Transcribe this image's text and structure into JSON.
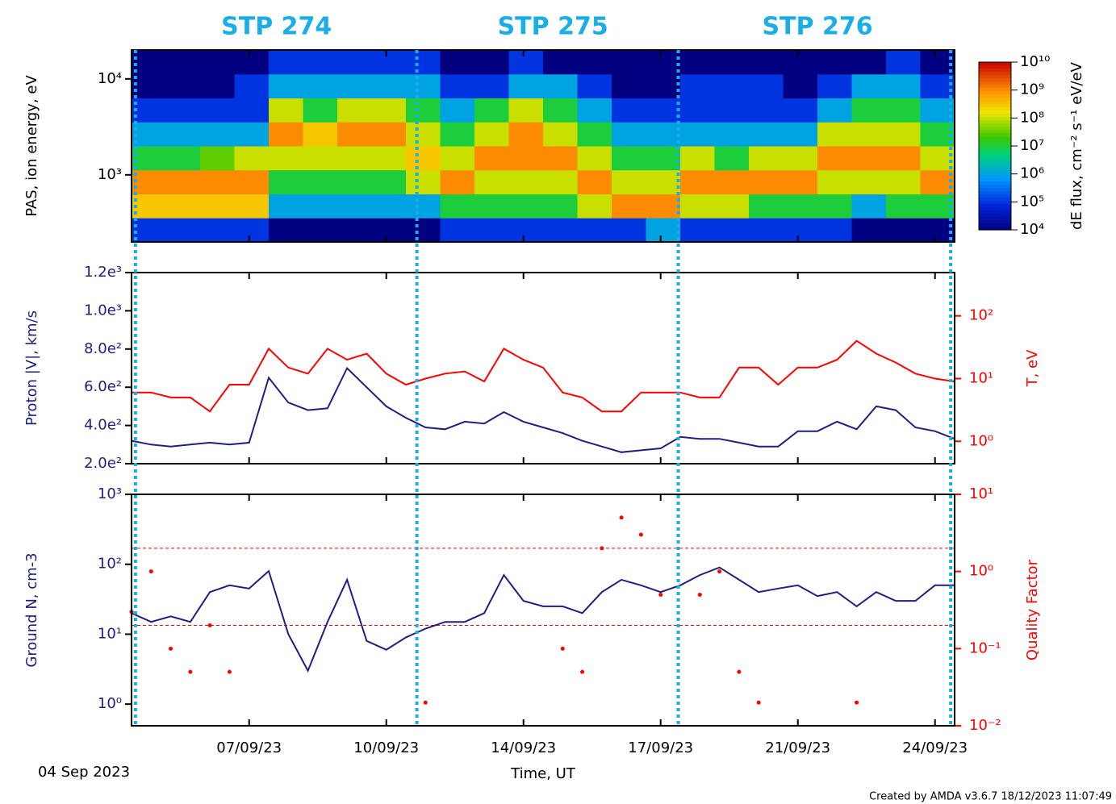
{
  "stp": {
    "labels": [
      "STP 274",
      "STP 275",
      "STP 276"
    ],
    "label_x": [
      7.7,
      14.75,
      21.5
    ],
    "boundaries": [
      4.1,
      11.28,
      17.95,
      24.9
    ]
  },
  "time_axis": {
    "xlim": [
      4,
      25
    ],
    "start_label": "04 Sep 2023",
    "label": "Time, UT",
    "xticks": [
      {
        "value": 7,
        "label": "07/09/23"
      },
      {
        "value": 10.5,
        "label": "10/09/23"
      },
      {
        "value": 14,
        "label": "14/09/23"
      },
      {
        "value": 17.5,
        "label": "17/09/23"
      },
      {
        "value": 21,
        "label": "21/09/23"
      },
      {
        "value": 24.5,
        "label": "24/09/23"
      }
    ]
  },
  "credit": "Created by AMDA v3.6.7 18/12/2023 11:07:49",
  "chart_data": [
    {
      "type": "heatmap",
      "ylabel": "PAS, ion energy, eV",
      "ylog": true,
      "ylim": [
        200,
        20000
      ],
      "yticks": [
        {
          "value": 1000,
          "label": "10³"
        },
        {
          "value": 10000,
          "label": "10⁴"
        }
      ],
      "x_bins": [
        4,
        4.875,
        5.75,
        6.625,
        7.5,
        8.375,
        9.25,
        10.125,
        11,
        11.875,
        12.75,
        13.625,
        14.5,
        15.375,
        16.25,
        17.125,
        18,
        18.875,
        19.75,
        20.625,
        21.5,
        22.375,
        23.25,
        24.125,
        25
      ],
      "y_bins": [
        200,
        356,
        632,
        1125,
        2000,
        3557,
        6325,
        11247,
        20000
      ],
      "z": [
        [
          100000.0,
          300000000.0,
          1000000000.0,
          10000000.0,
          1000000.0,
          100000.0,
          10000.0,
          10000.0
        ],
        [
          100000.0,
          300000000.0,
          1000000000.0,
          10000000.0,
          1000000.0,
          100000.0,
          10000.0,
          10000.0
        ],
        [
          100000.0,
          300000000.0,
          1000000000.0,
          30000000.0,
          1000000.0,
          100000.0,
          10000.0,
          10000.0
        ],
        [
          100000.0,
          300000000.0,
          1000000000.0,
          100000000.0,
          1000000.0,
          100000.0,
          100000.0,
          10000.0
        ],
        [
          10000.0,
          1000000.0,
          10000000.0,
          100000000.0,
          1000000000.0,
          100000000.0,
          1000000.0,
          100000.0
        ],
        [
          10000.0,
          1000000.0,
          10000000.0,
          100000000.0,
          300000000.0,
          10000000.0,
          1000000.0,
          100000.0
        ],
        [
          10000.0,
          1000000.0,
          10000000.0,
          100000000.0,
          1000000000.0,
          100000000.0,
          1000000.0,
          100000.0
        ],
        [
          10000.0,
          1000000.0,
          10000000.0,
          100000000.0,
          1000000000.0,
          100000000.0,
          1000000.0,
          100000.0
        ],
        [
          10000.0,
          1000000.0,
          100000000.0,
          300000000.0,
          100000000.0,
          10000000.0,
          1000000.0,
          100000.0
        ],
        [
          100000.0,
          10000000.0,
          1000000000.0,
          100000000.0,
          10000000.0,
          1000000.0,
          100000.0,
          10000.0
        ],
        [
          100000.0,
          10000000.0,
          100000000.0,
          1000000000.0,
          100000000.0,
          10000000.0,
          100000.0,
          10000.0
        ],
        [
          100000.0,
          10000000.0,
          100000000.0,
          1000000000.0,
          1000000000.0,
          100000000.0,
          1000000.0,
          100000.0
        ],
        [
          100000.0,
          10000000.0,
          100000000.0,
          1000000000.0,
          100000000.0,
          10000000.0,
          1000000.0,
          10000.0
        ],
        [
          100000.0,
          100000000.0,
          1000000000.0,
          100000000.0,
          10000000.0,
          1000000.0,
          100000.0,
          10000.0
        ],
        [
          100000.0,
          1000000000.0,
          100000000.0,
          10000000.0,
          1000000.0,
          100000.0,
          10000.0,
          10000.0
        ],
        [
          1000000.0,
          1000000000.0,
          100000000.0,
          10000000.0,
          1000000.0,
          100000.0,
          10000.0,
          10000.0
        ],
        [
          100000.0,
          100000000.0,
          1000000000.0,
          100000000.0,
          1000000.0,
          100000.0,
          100000.0,
          10000.0
        ],
        [
          100000.0,
          100000000.0,
          1000000000.0,
          10000000.0,
          1000000.0,
          100000.0,
          100000.0,
          10000.0
        ],
        [
          100000.0,
          10000000.0,
          1000000000.0,
          100000000.0,
          1000000.0,
          100000.0,
          100000.0,
          10000.0
        ],
        [
          100000.0,
          10000000.0,
          1000000000.0,
          100000000.0,
          1000000.0,
          100000.0,
          10000.0,
          10000.0
        ],
        [
          100000.0,
          10000000.0,
          100000000.0,
          1000000000.0,
          100000000.0,
          1000000.0,
          100000.0,
          10000.0
        ],
        [
          10000.0,
          1000000.0,
          100000000.0,
          1000000000.0,
          100000000.0,
          10000000.0,
          1000000.0,
          10000.0
        ],
        [
          10000.0,
          10000000.0,
          100000000.0,
          1000000000.0,
          100000000.0,
          10000000.0,
          1000000.0,
          100000.0
        ],
        [
          10000.0,
          10000000.0,
          1000000000.0,
          100000000.0,
          10000000.0,
          1000000.0,
          100000.0,
          10000.0
        ]
      ],
      "colorbar": {
        "label": "dE flux, cm⁻² s⁻¹ eV/eV",
        "lim": [
          10000.0,
          10000000000.0
        ],
        "log": true,
        "ticks": [
          {
            "value": 10000.0,
            "label": "10⁴"
          },
          {
            "value": 100000.0,
            "label": "10⁵"
          },
          {
            "value": 1000000.0,
            "label": "10⁶"
          },
          {
            "value": 10000000.0,
            "label": "10⁷"
          },
          {
            "value": 100000000.0,
            "label": "10⁸"
          },
          {
            "value": 1000000000.0,
            "label": "10⁹"
          },
          {
            "value": 10000000000.0,
            "label": "10¹⁰"
          }
        ]
      }
    },
    {
      "type": "line",
      "ylabel": "Proton |V|, km/s",
      "y2label": "T, eV",
      "ylim": [
        200,
        1200
      ],
      "y2lim": [
        0.44,
        490
      ],
      "y2log": true,
      "yticks": [
        {
          "value": 200,
          "label": "2.0e²"
        },
        {
          "value": 400,
          "label": "4.0e²"
        },
        {
          "value": 600,
          "label": "6.0e²"
        },
        {
          "value": 800,
          "label": "8.0e²"
        },
        {
          "value": 1000,
          "label": "1.0e³"
        },
        {
          "value": 1200,
          "label": "1.2e³"
        }
      ],
      "y2ticks": [
        {
          "value": 1,
          "label": "10⁰"
        },
        {
          "value": 10,
          "label": "10¹"
        },
        {
          "value": 100,
          "label": "10²"
        }
      ],
      "x": [
        4,
        4.5,
        5,
        5.5,
        6,
        6.5,
        7,
        7.5,
        8,
        8.5,
        9,
        9.5,
        10,
        10.5,
        11,
        11.5,
        12,
        12.5,
        13,
        13.5,
        14,
        14.5,
        15,
        15.5,
        16,
        16.5,
        17,
        17.5,
        18,
        18.5,
        19,
        19.5,
        20,
        20.5,
        21,
        21.5,
        22,
        22.5,
        23,
        23.5,
        24,
        24.5,
        25
      ],
      "series": [
        {
          "color": "#1f1f80",
          "axis": "y",
          "values": [
            320,
            300,
            290,
            300,
            310,
            300,
            310,
            650,
            520,
            480,
            490,
            700,
            600,
            500,
            440,
            390,
            380,
            420,
            410,
            470,
            420,
            390,
            360,
            320,
            290,
            260,
            270,
            280,
            340,
            330,
            330,
            310,
            290,
            290,
            370,
            370,
            420,
            380,
            500,
            480,
            390,
            370,
            330
          ]
        },
        {
          "color": "#ff0000",
          "axis": "y2",
          "values": [
            6,
            6,
            5,
            5,
            3,
            8,
            8,
            30,
            15,
            12,
            30,
            20,
            25,
            12,
            8,
            10,
            12,
            13,
            9,
            30,
            20,
            15,
            6,
            5,
            3,
            3,
            6,
            6,
            6,
            5,
            5,
            15,
            15,
            8,
            15,
            15,
            20,
            40,
            25,
            18,
            12,
            10,
            9
          ]
        }
      ]
    },
    {
      "type": "line",
      "ylabel": "Ground N, cm-3",
      "y2label": "Quality Factor",
      "ylog": true,
      "y2log": true,
      "ylim": [
        0.49,
        1000
      ],
      "y2lim": [
        0.01,
        10
      ],
      "yticks": [
        {
          "value": 1,
          "label": "10⁰"
        },
        {
          "value": 10,
          "label": "10¹"
        },
        {
          "value": 100,
          "label": "10²"
        },
        {
          "value": 1000,
          "label": "10³"
        }
      ],
      "y2ticks": [
        {
          "value": 0.01,
          "label": "10⁻²"
        },
        {
          "value": 0.1,
          "label": "10⁻¹"
        },
        {
          "value": 1,
          "label": "10⁰"
        },
        {
          "value": 10,
          "label": "10¹"
        }
      ],
      "y2_reference_lines": [
        2,
        0.2
      ],
      "x": [
        4,
        4.5,
        5,
        5.5,
        6,
        6.5,
        7,
        7.5,
        8,
        8.5,
        9,
        9.5,
        10,
        10.5,
        11,
        11.5,
        12,
        12.5,
        13,
        13.5,
        14,
        14.5,
        15,
        15.5,
        16,
        16.5,
        17,
        17.5,
        18,
        18.5,
        19,
        19.5,
        20,
        20.5,
        21,
        21.5,
        22,
        22.5,
        23,
        23.5,
        24,
        24.5,
        25
      ],
      "series": [
        {
          "color": "#1f1f80",
          "axis": "y",
          "style": "line",
          "values": [
            20,
            15,
            18,
            15,
            40,
            50,
            45,
            80,
            10,
            3,
            15,
            60,
            8,
            6,
            9,
            12,
            15,
            15,
            20,
            70,
            30,
            25,
            25,
            20,
            40,
            60,
            50,
            40,
            50,
            70,
            90,
            60,
            40,
            45,
            50,
            35,
            40,
            25,
            40,
            30,
            30,
            50,
            50
          ]
        },
        {
          "color": "#ff0000",
          "axis": "y2",
          "style": "points",
          "values": [
            0.3,
            1,
            0.1,
            0.05,
            0.2,
            0.05,
            null,
            null,
            null,
            null,
            null,
            null,
            null,
            null,
            null,
            0.02,
            null,
            null,
            null,
            null,
            null,
            null,
            0.1,
            0.05,
            2,
            5,
            3,
            0.5,
            null,
            0.5,
            1,
            0.05,
            0.02,
            null,
            null,
            null,
            null,
            0.02,
            null,
            null,
            null,
            null,
            null
          ]
        }
      ]
    }
  ]
}
